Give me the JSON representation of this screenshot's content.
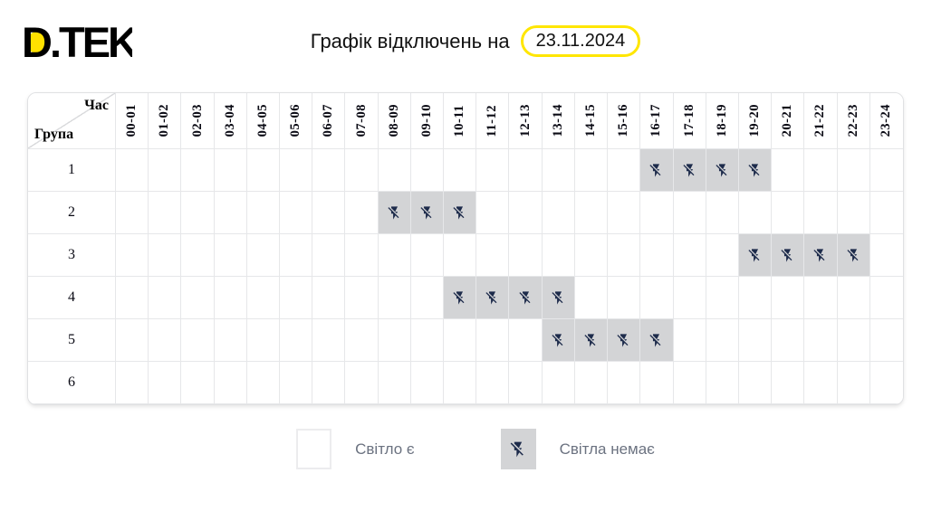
{
  "logo": {
    "text": "D.TEK",
    "alt": "ДТЕК"
  },
  "header": {
    "title": "Графік відключень на",
    "date": "23.11.2024"
  },
  "schedule": {
    "corner": {
      "top": "Час",
      "bottom": "Група"
    },
    "hours": [
      "00-01",
      "01-02",
      "02-03",
      "03-04",
      "04-05",
      "05-06",
      "06-07",
      "07-08",
      "08-09",
      "09-10",
      "10-11",
      "11-12",
      "12-13",
      "13-14",
      "14-15",
      "15-16",
      "16-17",
      "17-18",
      "18-19",
      "19-20",
      "20-21",
      "21-22",
      "22-23",
      "23-24"
    ],
    "groups": [
      {
        "label": "1",
        "outage_hours": [
          "16-17",
          "17-18",
          "18-19",
          "19-20"
        ]
      },
      {
        "label": "2",
        "outage_hours": [
          "08-09",
          "09-10",
          "10-11"
        ]
      },
      {
        "label": "3",
        "outage_hours": [
          "19-20",
          "20-21",
          "21-22",
          "22-23"
        ]
      },
      {
        "label": "4",
        "outage_hours": [
          "10-11",
          "11-12",
          "12-13",
          "13-14"
        ]
      },
      {
        "label": "5",
        "outage_hours": [
          "13-14",
          "14-15",
          "15-16",
          "16-17"
        ]
      },
      {
        "label": "6",
        "outage_hours": []
      }
    ]
  },
  "legend": {
    "power_on_label": "Світло є",
    "power_off_label": "Світла немає",
    "power_off_icon": "flash-off-icon"
  },
  "colors": {
    "accent_yellow": "#ffe100",
    "badge_border_yellow": "#ffe600",
    "outage_cell_gray": "#d3d4d6",
    "icon_navy": "#1d2b4b",
    "grid_line": "#e6e7e9",
    "legend_text": "#6b7280"
  }
}
